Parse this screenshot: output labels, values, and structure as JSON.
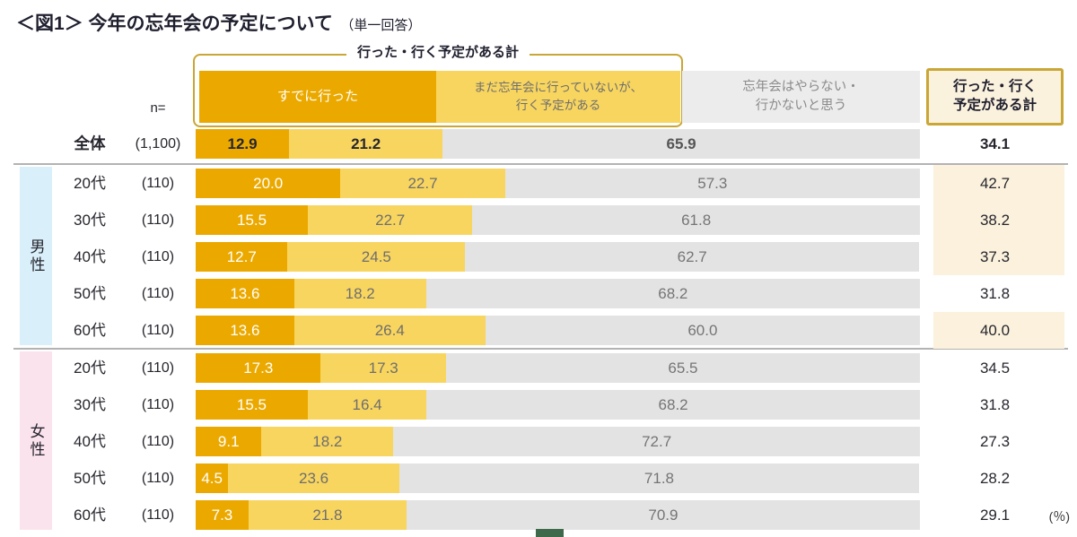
{
  "header": {
    "title": "＜図1＞ 今年の忘年会の予定について",
    "subtitle": "（単一回答）"
  },
  "bracket_label": "行った・行く予定がある計",
  "legend": {
    "went": "すでに行った",
    "plan": [
      "まだ忘年会に行っていないが、",
      "行く予定がある"
    ],
    "none": [
      "忘年会はやらない・",
      "行かないと思う"
    ],
    "summary": [
      "行った・行く",
      "予定がある計"
    ]
  },
  "n_header": "n=",
  "unit": "(％)",
  "groups": {
    "male": "男性",
    "female": "女性"
  },
  "chart_data": {
    "type": "bar",
    "stacked": true,
    "orientation": "horizontal",
    "xlim": [
      0,
      100
    ],
    "title": "＜図1＞ 今年の忘年会の予定について（単一回答）",
    "series_names": [
      "すでに行った",
      "まだ忘年会に行っていないが、行く予定がある",
      "忘年会はやらない・行かないと思う"
    ],
    "summary_name": "行った・行く予定がある計",
    "rows": [
      {
        "group": null,
        "label": "全体",
        "n": "(1,100)",
        "values": [
          12.9,
          21.2,
          65.9
        ],
        "summary": 34.1,
        "highlight": false,
        "emphasis": true
      },
      {
        "group": "male",
        "label": "20代",
        "n": "(110)",
        "values": [
          20.0,
          22.7,
          57.3
        ],
        "summary": 42.7,
        "highlight": true,
        "emphasis": false
      },
      {
        "group": "male",
        "label": "30代",
        "n": "(110)",
        "values": [
          15.5,
          22.7,
          61.8
        ],
        "summary": 38.2,
        "highlight": true,
        "emphasis": false
      },
      {
        "group": "male",
        "label": "40代",
        "n": "(110)",
        "values": [
          12.7,
          24.5,
          62.7
        ],
        "summary": 37.3,
        "highlight": true,
        "emphasis": false
      },
      {
        "group": "male",
        "label": "50代",
        "n": "(110)",
        "values": [
          13.6,
          18.2,
          68.2
        ],
        "summary": 31.8,
        "highlight": false,
        "emphasis": false
      },
      {
        "group": "male",
        "label": "60代",
        "n": "(110)",
        "values": [
          13.6,
          26.4,
          60.0
        ],
        "summary": 40.0,
        "highlight": true,
        "emphasis": false
      },
      {
        "group": "female",
        "label": "20代",
        "n": "(110)",
        "values": [
          17.3,
          17.3,
          65.5
        ],
        "summary": 34.5,
        "highlight": false,
        "emphasis": false
      },
      {
        "group": "female",
        "label": "30代",
        "n": "(110)",
        "values": [
          15.5,
          16.4,
          68.2
        ],
        "summary": 31.8,
        "highlight": false,
        "emphasis": false
      },
      {
        "group": "female",
        "label": "40代",
        "n": "(110)",
        "values": [
          9.1,
          18.2,
          72.7
        ],
        "summary": 27.3,
        "highlight": false,
        "emphasis": false
      },
      {
        "group": "female",
        "label": "50代",
        "n": "(110)",
        "values": [
          4.5,
          23.6,
          71.8
        ],
        "summary": 28.2,
        "highlight": false,
        "emphasis": false
      },
      {
        "group": "female",
        "label": "60代",
        "n": "(110)",
        "values": [
          7.3,
          21.8,
          70.9
        ],
        "summary": 29.1,
        "highlight": false,
        "emphasis": false
      }
    ]
  },
  "colors": {
    "went": "#EBA900",
    "plan": "#F8D55F",
    "none": "#E3E3E3",
    "gold_border": "#C9A636",
    "highlight_bg": "#FBF1DC",
    "summary_header_bg": "#FBF2DE",
    "male_band_bg": "#D9EFFA",
    "female_band_bg": "#FBE3EE",
    "text_dark": "#1F1F2E",
    "green_accent": "#3E694A"
  }
}
